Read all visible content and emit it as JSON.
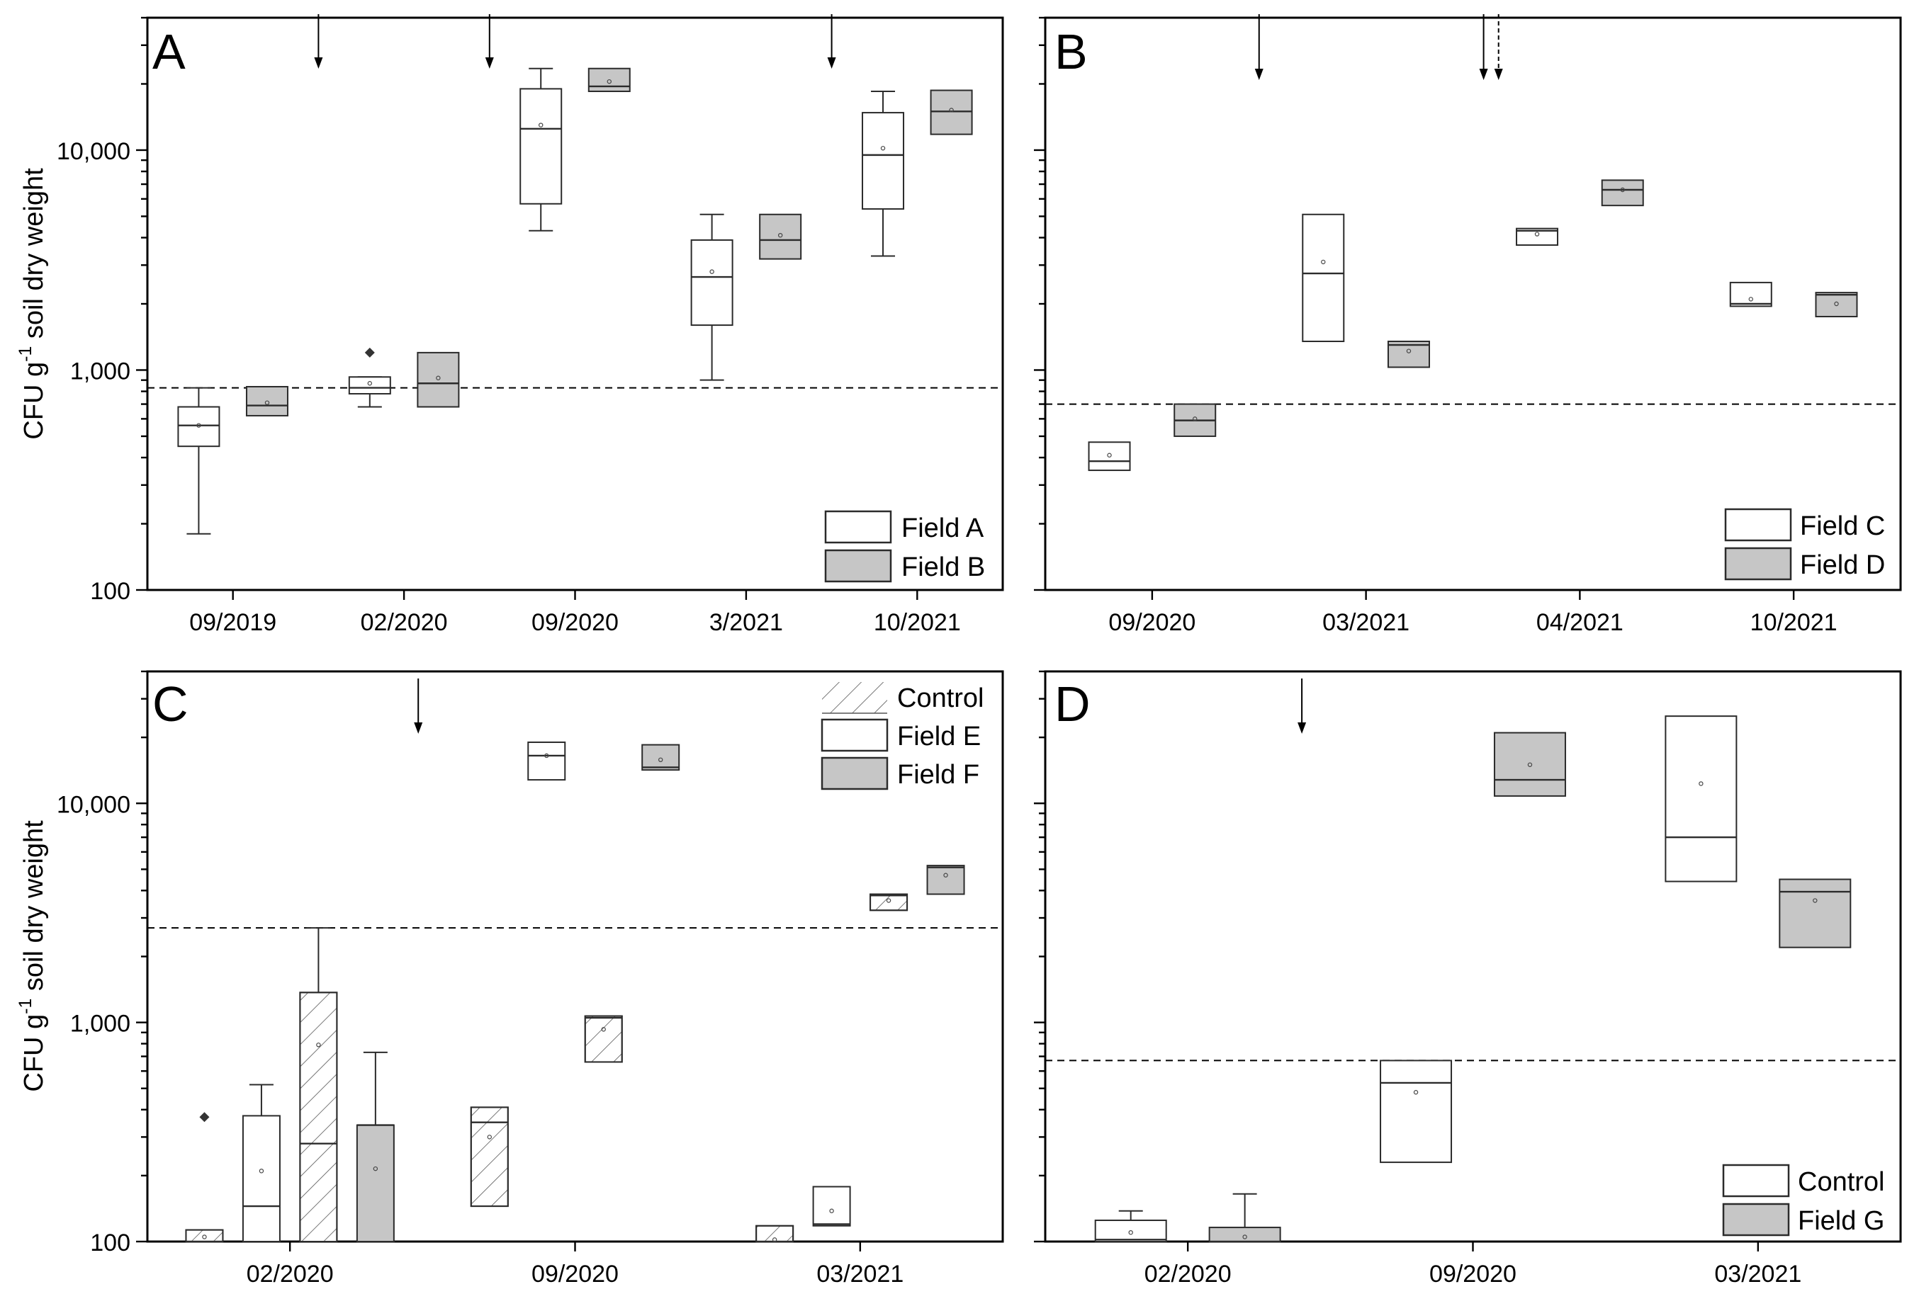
{
  "figure": {
    "ylabel_prefix": "CFU g",
    "ylabel_sup": "-1",
    "ylabel_suffix": " soil dry weight"
  },
  "colors": {
    "white_fill": "#ffffff",
    "gray_fill": "#c6c6c6",
    "stroke": "#2b2b2b",
    "hatch": "#555555"
  },
  "chart_data": [
    {
      "panel": "A",
      "type": "box",
      "yscale": "log",
      "ylim": [
        100,
        40000
      ],
      "ytick_labels": [
        "100",
        "1,000",
        "10,000"
      ],
      "ytick_values": [
        100,
        1000,
        10000
      ],
      "categories": [
        "09/2019",
        "02/2020",
        "09/2020",
        "3/2021",
        "10/2021"
      ],
      "threshold": 830,
      "arrows_after_category": [
        0.5,
        1.5,
        3.5
      ],
      "dashed_arrows_after_category": [],
      "legend": [
        {
          "key": "A",
          "label": "Field A",
          "style": "white"
        },
        {
          "key": "B",
          "label": "Field B",
          "style": "gray"
        }
      ],
      "series": [
        {
          "name": "Field A",
          "style": "white",
          "boxes": [
            {
              "cat": 0,
              "q1": 450,
              "median": 560,
              "q3": 680,
              "whisker_low": 180,
              "whisker_high": 830,
              "mean": 560,
              "outliers": []
            },
            {
              "cat": 1,
              "q1": 780,
              "median": 830,
              "q3": 930,
              "whisker_low": 680,
              "whisker_high": 930,
              "mean": 870,
              "outliers": [
                1200
              ]
            },
            {
              "cat": 2,
              "q1": 5700,
              "median": 12500,
              "q3": 19000,
              "whisker_low": 4300,
              "whisker_high": 23500,
              "mean": 13000,
              "outliers": []
            },
            {
              "cat": 3,
              "q1": 1600,
              "median": 2650,
              "q3": 3900,
              "whisker_low": 900,
              "whisker_high": 5100,
              "mean": 2800,
              "outliers": []
            },
            {
              "cat": 4,
              "q1": 5400,
              "median": 9500,
              "q3": 14800,
              "whisker_low": 3300,
              "whisker_high": 18500,
              "mean": 10200,
              "outliers": []
            }
          ]
        },
        {
          "name": "Field B",
          "style": "gray",
          "boxes": [
            {
              "cat": 0,
              "q1": 620,
              "median": 690,
              "q3": 840,
              "mean": 710,
              "outliers": []
            },
            {
              "cat": 1,
              "q1": 680,
              "median": 870,
              "q3": 1200,
              "mean": 920,
              "outliers": []
            },
            {
              "cat": 2,
              "q1": 18500,
              "median": 19500,
              "q3": 23500,
              "mean": 20500,
              "outliers": []
            },
            {
              "cat": 3,
              "q1": 3200,
              "median": 3900,
              "q3": 5100,
              "mean": 4100,
              "outliers": []
            },
            {
              "cat": 4,
              "q1": 11800,
              "median": 15000,
              "q3": 18700,
              "mean": 15200,
              "outliers": []
            }
          ]
        }
      ]
    },
    {
      "panel": "B",
      "type": "box",
      "yscale": "log",
      "ylim": [
        100,
        40000
      ],
      "ytick_labels": [],
      "ytick_values": [
        100,
        1000,
        10000
      ],
      "categories": [
        "09/2020",
        "03/2021",
        "04/2021",
        "10/2021"
      ],
      "threshold": 700,
      "arrows_after_category": [
        0.5,
        1.55
      ],
      "dashed_arrows_after_category": [
        1.62
      ],
      "legend": [
        {
          "key": "C",
          "label": "Field C",
          "style": "white"
        },
        {
          "key": "D",
          "label": "Field D",
          "style": "gray"
        }
      ],
      "series": [
        {
          "name": "Field C",
          "style": "white",
          "boxes": [
            {
              "cat": 0,
              "q1": 350,
              "median": 385,
              "q3": 470,
              "mean": 410,
              "outliers": []
            },
            {
              "cat": 1,
              "q1": 1350,
              "median": 2750,
              "q3": 5100,
              "mean": 3100,
              "outliers": []
            },
            {
              "cat": 2,
              "q1": 3700,
              "median": 4300,
              "q3": 4400,
              "mean": 4150,
              "outliers": []
            },
            {
              "cat": 3,
              "q1": 1950,
              "median": 2000,
              "q3": 2500,
              "mean": 2100,
              "outliers": []
            }
          ]
        },
        {
          "name": "Field D",
          "style": "gray",
          "boxes": [
            {
              "cat": 0,
              "q1": 500,
              "median": 590,
              "q3": 700,
              "mean": 600,
              "outliers": []
            },
            {
              "cat": 1,
              "q1": 1030,
              "median": 1300,
              "q3": 1350,
              "mean": 1220,
              "outliers": []
            },
            {
              "cat": 2,
              "q1": 5600,
              "median": 6600,
              "q3": 7300,
              "mean": 6600,
              "outliers": []
            },
            {
              "cat": 3,
              "q1": 1750,
              "median": 2200,
              "q3": 2250,
              "mean": 2000,
              "outliers": []
            }
          ]
        }
      ]
    },
    {
      "panel": "C",
      "type": "box",
      "yscale": "log",
      "ylim": [
        100,
        40000
      ],
      "ytick_labels": [
        "100",
        "1,000",
        "10,000"
      ],
      "ytick_values": [
        100,
        1000,
        10000
      ],
      "categories": [
        "02/2020",
        "09/2020",
        "03/2021"
      ],
      "threshold": 2700,
      "arrows_after_category": [
        0.45
      ],
      "dashed_arrows_after_category": [],
      "legend": [
        {
          "key": "Control",
          "label": "Control",
          "style": "hatch-white"
        },
        {
          "key": "E",
          "label": "Field E",
          "style": "white"
        },
        {
          "key": "F",
          "label": "Field F",
          "style": "gray"
        }
      ],
      "series": [
        {
          "name": "Control (Field E)",
          "style": "hatch-white",
          "boxes": [
            {
              "cat": 0,
              "offset": -0.3,
              "q1": 100,
              "median": 100,
              "q3": 113,
              "mean": 105,
              "outliers": [
                370
              ]
            },
            {
              "cat": 1,
              "offset": -0.3,
              "q1": 145,
              "median": 350,
              "q3": 410,
              "mean": 300,
              "outliers": []
            },
            {
              "cat": 2,
              "offset": -0.3,
              "q1": 100,
              "median": 100,
              "q3": 118,
              "mean": 102,
              "outliers": []
            }
          ]
        },
        {
          "name": "Field E",
          "style": "white",
          "boxes": [
            {
              "cat": 0,
              "offset": -0.1,
              "q1": 100,
              "median": 145,
              "q3": 375,
              "whisker_high": 520,
              "mean": 210,
              "outliers": []
            },
            {
              "cat": 1,
              "offset": -0.1,
              "q1": 12800,
              "median": 16500,
              "q3": 19000,
              "mean": 16500,
              "outliers": []
            },
            {
              "cat": 2,
              "offset": -0.1,
              "q1": 118,
              "median": 120,
              "q3": 178,
              "mean": 138,
              "outliers": []
            }
          ]
        },
        {
          "name": "Control (Field F)",
          "style": "hatch-gray",
          "boxes": [
            {
              "cat": 0,
              "offset": 0.1,
              "q1": 100,
              "median": 280,
              "q3": 1370,
              "whisker_high": 2700,
              "mean": 790,
              "outliers": []
            },
            {
              "cat": 1,
              "offset": 0.1,
              "q1": 660,
              "median": 1050,
              "q3": 1070,
              "mean": 930,
              "outliers": []
            },
            {
              "cat": 2,
              "offset": 0.1,
              "q1": 3250,
              "median": 3800,
              "q3": 3850,
              "mean": 3600,
              "outliers": []
            }
          ]
        },
        {
          "name": "Field F",
          "style": "gray",
          "boxes": [
            {
              "cat": 0,
              "offset": 0.3,
              "q1": 100,
              "median": 340,
              "q3": 340,
              "whisker_high": 730,
              "mean": 215,
              "outliers": []
            },
            {
              "cat": 1,
              "offset": 0.3,
              "q1": 14200,
              "median": 14600,
              "q3": 18500,
              "mean": 15800,
              "outliers": []
            },
            {
              "cat": 2,
              "offset": 0.3,
              "q1": 3850,
              "median": 5100,
              "q3": 5200,
              "mean": 4700,
              "outliers": []
            }
          ]
        }
      ]
    },
    {
      "panel": "D",
      "type": "box",
      "yscale": "log",
      "ylim": [
        100,
        40000
      ],
      "ytick_labels": [],
      "ytick_values": [
        100,
        1000,
        10000
      ],
      "categories": [
        "02/2020",
        "09/2020",
        "03/2021"
      ],
      "threshold": 670,
      "arrows_after_category": [
        0.4
      ],
      "dashed_arrows_after_category": [],
      "legend": [
        {
          "key": "Control",
          "label": "Control",
          "style": "white"
        },
        {
          "key": "G",
          "label": "Field G",
          "style": "gray"
        }
      ],
      "series": [
        {
          "name": "Control",
          "style": "white",
          "boxes": [
            {
              "cat": 0,
              "q1": 100,
              "median": 102,
              "q3": 125,
              "whisker_high": 138,
              "mean": 110,
              "outliers": []
            },
            {
              "cat": 1,
              "q1": 230,
              "median": 530,
              "q3": 670,
              "mean": 480,
              "outliers": []
            },
            {
              "cat": 2,
              "q1": 4400,
              "median": 7000,
              "q3": 25000,
              "mean": 12300,
              "outliers": []
            }
          ]
        },
        {
          "name": "Field G",
          "style": "gray",
          "boxes": [
            {
              "cat": 0,
              "q1": 100,
              "median": 100,
              "q3": 116,
              "whisker_high": 165,
              "mean": 105,
              "outliers": []
            },
            {
              "cat": 1,
              "q1": 10800,
              "median": 12800,
              "q3": 21000,
              "mean": 15000,
              "outliers": []
            },
            {
              "cat": 2,
              "q1": 2200,
              "median": 3950,
              "q3": 4500,
              "mean": 3600,
              "outliers": []
            }
          ]
        }
      ]
    }
  ]
}
